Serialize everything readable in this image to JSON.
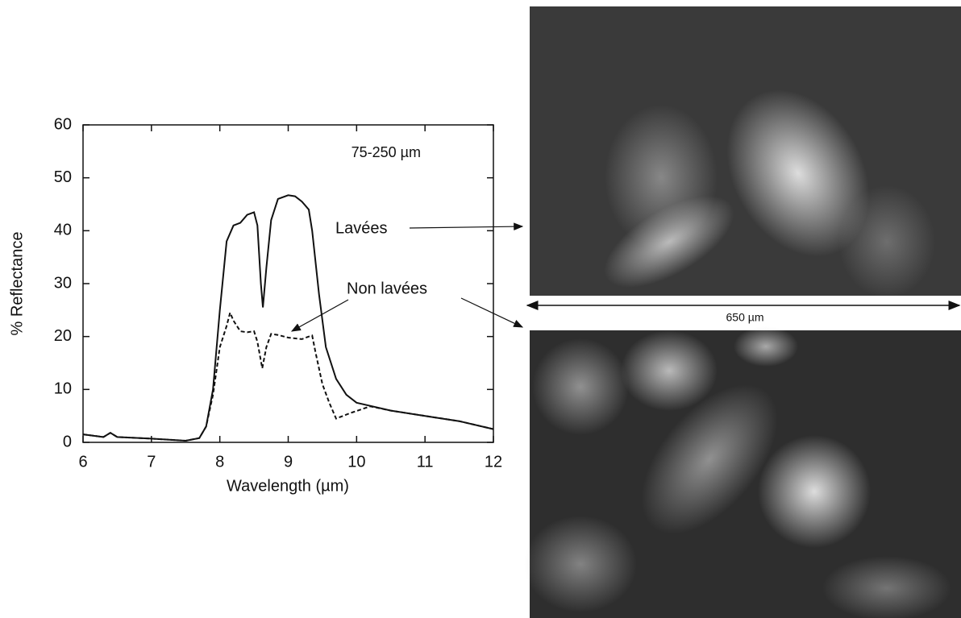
{
  "chart_data": {
    "type": "line",
    "annotation": "75-250 µm",
    "scale_label": "650 µm",
    "x_label": "Wavelength  (µm)",
    "y_label": "% Reflectance",
    "xlim": [
      6,
      12
    ],
    "ylim": [
      0,
      60
    ],
    "xticks": [
      6,
      7,
      8,
      9,
      10,
      11,
      12
    ],
    "yticks": [
      0,
      10,
      20,
      30,
      40,
      50,
      60
    ],
    "series": [
      {
        "name": "Lavées",
        "color": "#111111",
        "dash": false,
        "x": [
          6,
          6.3,
          6.4,
          6.5,
          7,
          7.5,
          7.7,
          7.8,
          7.9,
          8.0,
          8.1,
          8.2,
          8.3,
          8.4,
          8.5,
          8.55,
          8.6,
          8.63,
          8.68,
          8.75,
          8.85,
          9.0,
          9.1,
          9.2,
          9.3,
          9.35,
          9.45,
          9.55,
          9.7,
          9.85,
          10,
          10.5,
          11,
          11.5,
          12
        ],
        "values": [
          1.5,
          1,
          1.8,
          1,
          0.7,
          0.3,
          0.8,
          3,
          10,
          25,
          38,
          41,
          41.5,
          43,
          43.5,
          41,
          30,
          25.5,
          33,
          42,
          46,
          46.7,
          46.5,
          45.5,
          44,
          40,
          28,
          18,
          12,
          9,
          7.5,
          6,
          5,
          4,
          2.5
        ]
      },
      {
        "name": "Non lavées",
        "color": "#111111",
        "dash": true,
        "x": [
          6,
          6.3,
          6.4,
          6.5,
          7,
          7.5,
          7.7,
          7.8,
          7.9,
          8.0,
          8.1,
          8.15,
          8.2,
          8.3,
          8.4,
          8.5,
          8.55,
          8.62,
          8.68,
          8.75,
          8.85,
          9.0,
          9.2,
          9.3,
          9.35,
          9.4,
          9.5,
          9.6,
          9.7,
          9.9,
          10.2,
          10.5,
          11,
          11.5,
          12
        ],
        "values": [
          1.5,
          1,
          1.8,
          1,
          0.7,
          0.3,
          0.8,
          3,
          9,
          18,
          22,
          24.5,
          23,
          21,
          20.8,
          21,
          19,
          14,
          18,
          20.5,
          20.3,
          19.8,
          19.5,
          20,
          20.2,
          17,
          11,
          7.5,
          4.5,
          5.5,
          6.8,
          6,
          5,
          4,
          2.5
        ]
      }
    ]
  }
}
